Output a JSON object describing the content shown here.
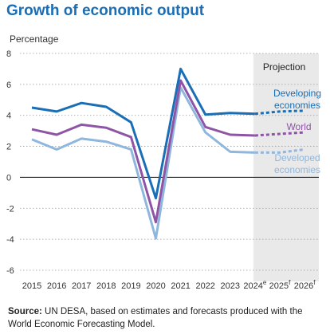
{
  "chart_data": {
    "type": "line",
    "title": "Growth of economic output",
    "ylabel": "Percentage",
    "xlabel": "",
    "ylim": [
      -6,
      8
    ],
    "yticks": [
      8,
      6,
      4,
      2,
      0,
      -2,
      -4,
      -6
    ],
    "ytick_labels": [
      "8",
      "6",
      "4",
      "2",
      "0",
      "-2",
      "-4",
      "-6"
    ],
    "categories": [
      "2015",
      "2016",
      "2017",
      "2018",
      "2019",
      "2020",
      "2021",
      "2022",
      "2023",
      "2024",
      "2025",
      "2026"
    ],
    "category_superscripts": [
      "",
      "",
      "",
      "",
      "",
      "",
      "",
      "",
      "",
      "e",
      "f",
      "f"
    ],
    "grid": "horizontal dotted",
    "projection": {
      "label": "Projection",
      "from": "2024",
      "to": "2026"
    },
    "series": [
      {
        "name": "Developing economies",
        "label_lines": [
          "Developing",
          "economies"
        ],
        "color": "#1a6eb5",
        "values": [
          4.5,
          4.25,
          4.8,
          4.55,
          3.55,
          -1.35,
          7.0,
          4.05,
          4.15,
          4.1,
          4.25,
          4.3
        ]
      },
      {
        "name": "World",
        "label_lines": [
          "World"
        ],
        "color": "#8e55a6",
        "values": [
          3.1,
          2.75,
          3.4,
          3.2,
          2.6,
          -2.9,
          6.25,
          3.25,
          2.75,
          2.7,
          2.8,
          2.9
        ]
      },
      {
        "name": "Developed economies",
        "label_lines": [
          "Developed",
          "economies"
        ],
        "color": "#8fb7de",
        "values": [
          2.45,
          1.8,
          2.5,
          2.3,
          1.8,
          -3.95,
          5.8,
          2.9,
          1.65,
          1.6,
          1.6,
          1.8
        ]
      }
    ]
  },
  "source": {
    "label": "Source:",
    "text": "UN DESA, based on estimates and forecasts produced with the World Economic Forecasting Model."
  }
}
